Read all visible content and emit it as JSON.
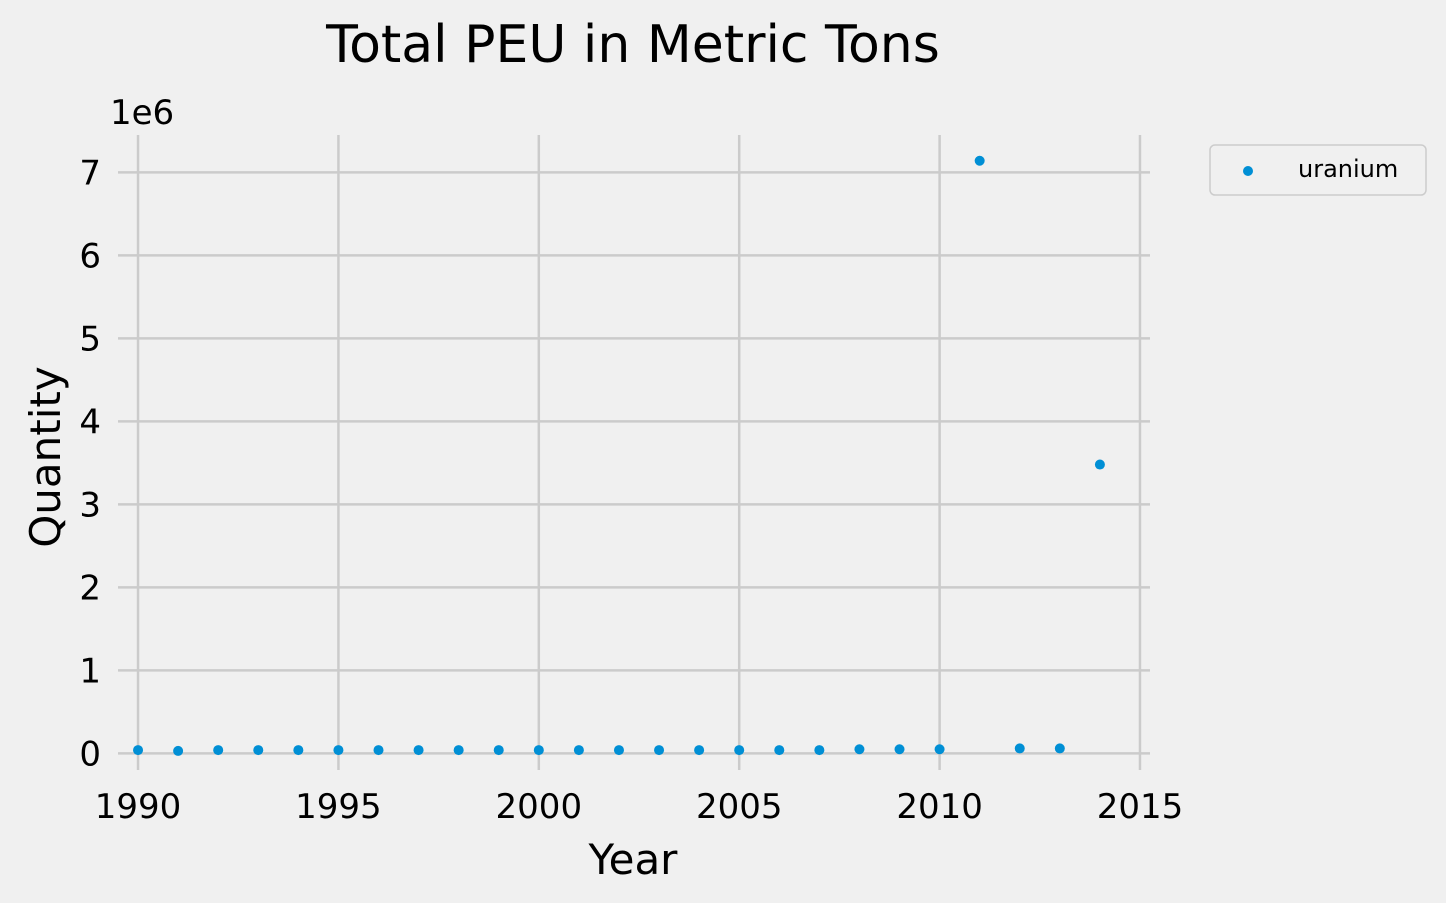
{
  "chart_data": {
    "type": "scatter",
    "title": "Total PEU in Metric Tons",
    "xlabel": "Year",
    "ylabel": "Quantity",
    "y_scale_label": "1e6",
    "xlim": [
      1989.5,
      2015.25
    ],
    "ylim": [
      -0.2,
      7.45
    ],
    "x_ticks": [
      1990,
      1995,
      2000,
      2005,
      2010,
      2015
    ],
    "y_ticks": [
      0,
      1,
      2,
      3,
      4,
      5,
      6,
      7
    ],
    "grid": true,
    "legend_position": "outside-top-right",
    "series": [
      {
        "name": "uranium",
        "color": "#008fd5",
        "x": [
          1990,
          1991,
          1992,
          1993,
          1994,
          1995,
          1996,
          1997,
          1998,
          1999,
          2000,
          2001,
          2002,
          2003,
          2004,
          2005,
          2006,
          2007,
          2008,
          2009,
          2010,
          2011,
          2012,
          2013,
          2014
        ],
        "y": [
          0.04,
          0.03,
          0.04,
          0.04,
          0.04,
          0.04,
          0.04,
          0.04,
          0.04,
          0.04,
          0.04,
          0.04,
          0.04,
          0.04,
          0.04,
          0.04,
          0.04,
          0.04,
          0.05,
          0.05,
          0.05,
          7.14,
          0.06,
          0.06,
          3.48
        ]
      }
    ]
  }
}
